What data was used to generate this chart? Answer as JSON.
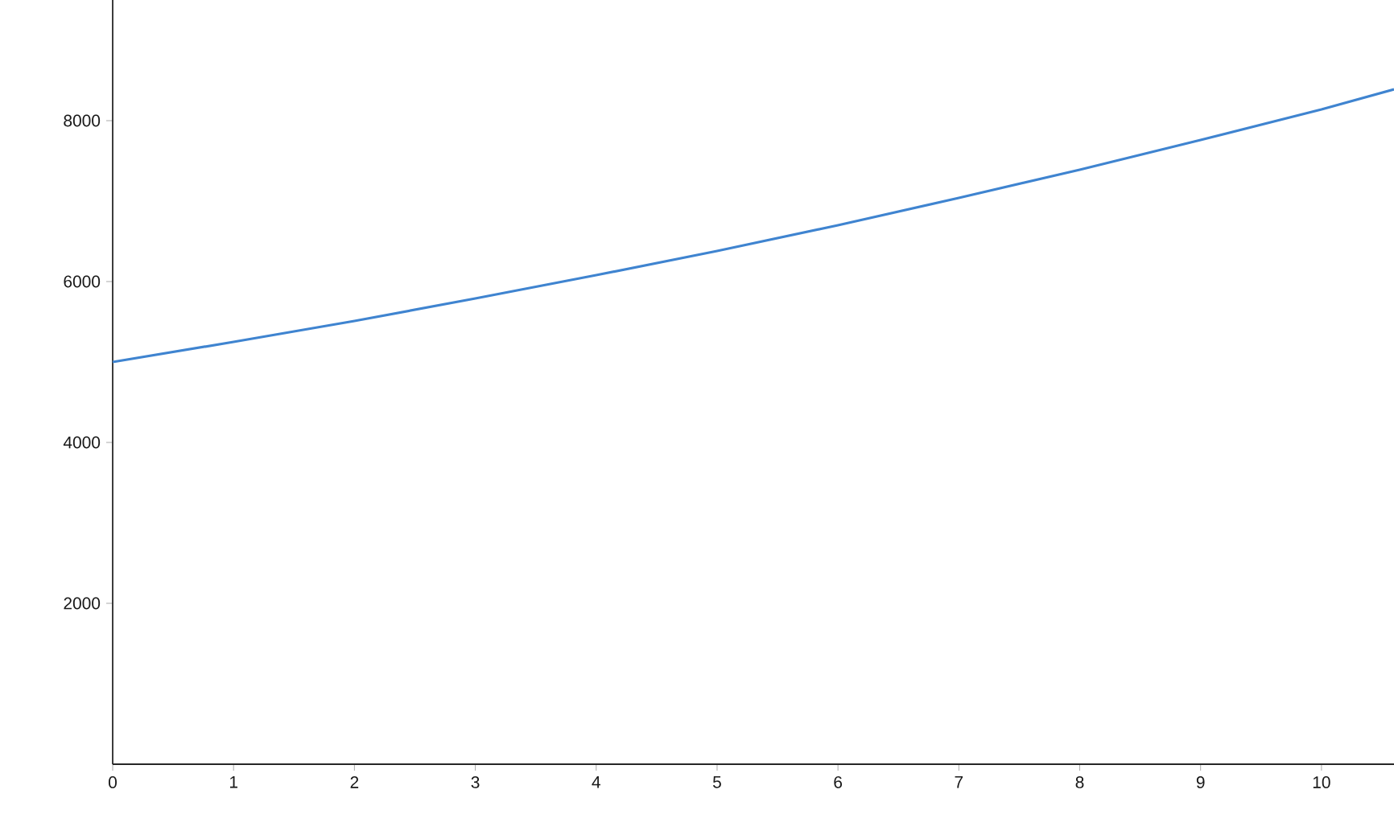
{
  "chart_data": {
    "type": "line",
    "x": [
      0,
      1,
      2,
      3,
      4,
      5,
      6,
      7,
      8,
      9,
      10,
      10.6
    ],
    "series": [
      {
        "color": "#3f84d0",
        "values": [
          5000,
          5250,
          5510,
          5790,
          6080,
          6380,
          6700,
          7040,
          7390,
          7760,
          8140,
          8390
        ]
      }
    ],
    "xlim": [
      0,
      10.6
    ],
    "ylim": [
      0,
      9500
    ],
    "xticks": [
      0,
      1,
      2,
      3,
      4,
      5,
      6,
      7,
      8,
      9,
      10
    ],
    "yticks": [
      2000,
      4000,
      6000,
      8000
    ],
    "marker": "none",
    "line_style": "solid"
  }
}
